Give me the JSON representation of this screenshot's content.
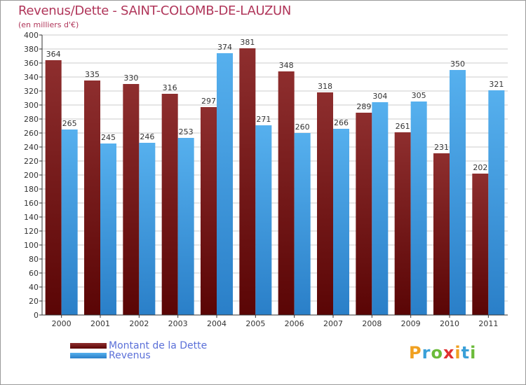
{
  "title": "Revenus/Dette - SAINT-COLOMB-DE-LAUZUN",
  "subtitle": "(en milliers d'€)",
  "logo": {
    "letters": [
      "P",
      "r",
      "o",
      "x",
      "i",
      "t",
      "i"
    ],
    "colors": [
      "#f0a020",
      "#3aa0d8",
      "#6bbb3a",
      "#e03030",
      "#f0a020",
      "#3aa0d8",
      "#6bbb3a"
    ]
  },
  "colors": {
    "dette": "#7a1a1a",
    "revenus": "#3a9ae0",
    "grid": "#cccccc",
    "axis": "#333333",
    "title": "#b0365a",
    "legend_text": "#5b70d8"
  },
  "chart_data": {
    "type": "bar",
    "title": "Revenus/Dette - SAINT-COLOMB-DE-LAUZUN",
    "ylabel": "(en milliers d'€)",
    "xlabel": "",
    "categories": [
      "2000",
      "2001",
      "2002",
      "2003",
      "2004",
      "2005",
      "2006",
      "2007",
      "2008",
      "2009",
      "2010",
      "2011"
    ],
    "series": [
      {
        "name": "Montant de la Dette",
        "values": [
          364,
          335,
          330,
          316,
          297,
          381,
          348,
          318,
          289,
          261,
          231,
          202
        ]
      },
      {
        "name": "Revenus",
        "values": [
          265,
          245,
          246,
          253,
          374,
          271,
          260,
          266,
          304,
          305,
          350,
          321
        ]
      }
    ],
    "ylim": [
      0,
      400
    ],
    "yticks": [
      0,
      20,
      40,
      60,
      80,
      100,
      120,
      140,
      160,
      180,
      200,
      220,
      240,
      260,
      280,
      300,
      320,
      340,
      360,
      380,
      400
    ],
    "grid": true,
    "legend": "bottom-left"
  }
}
